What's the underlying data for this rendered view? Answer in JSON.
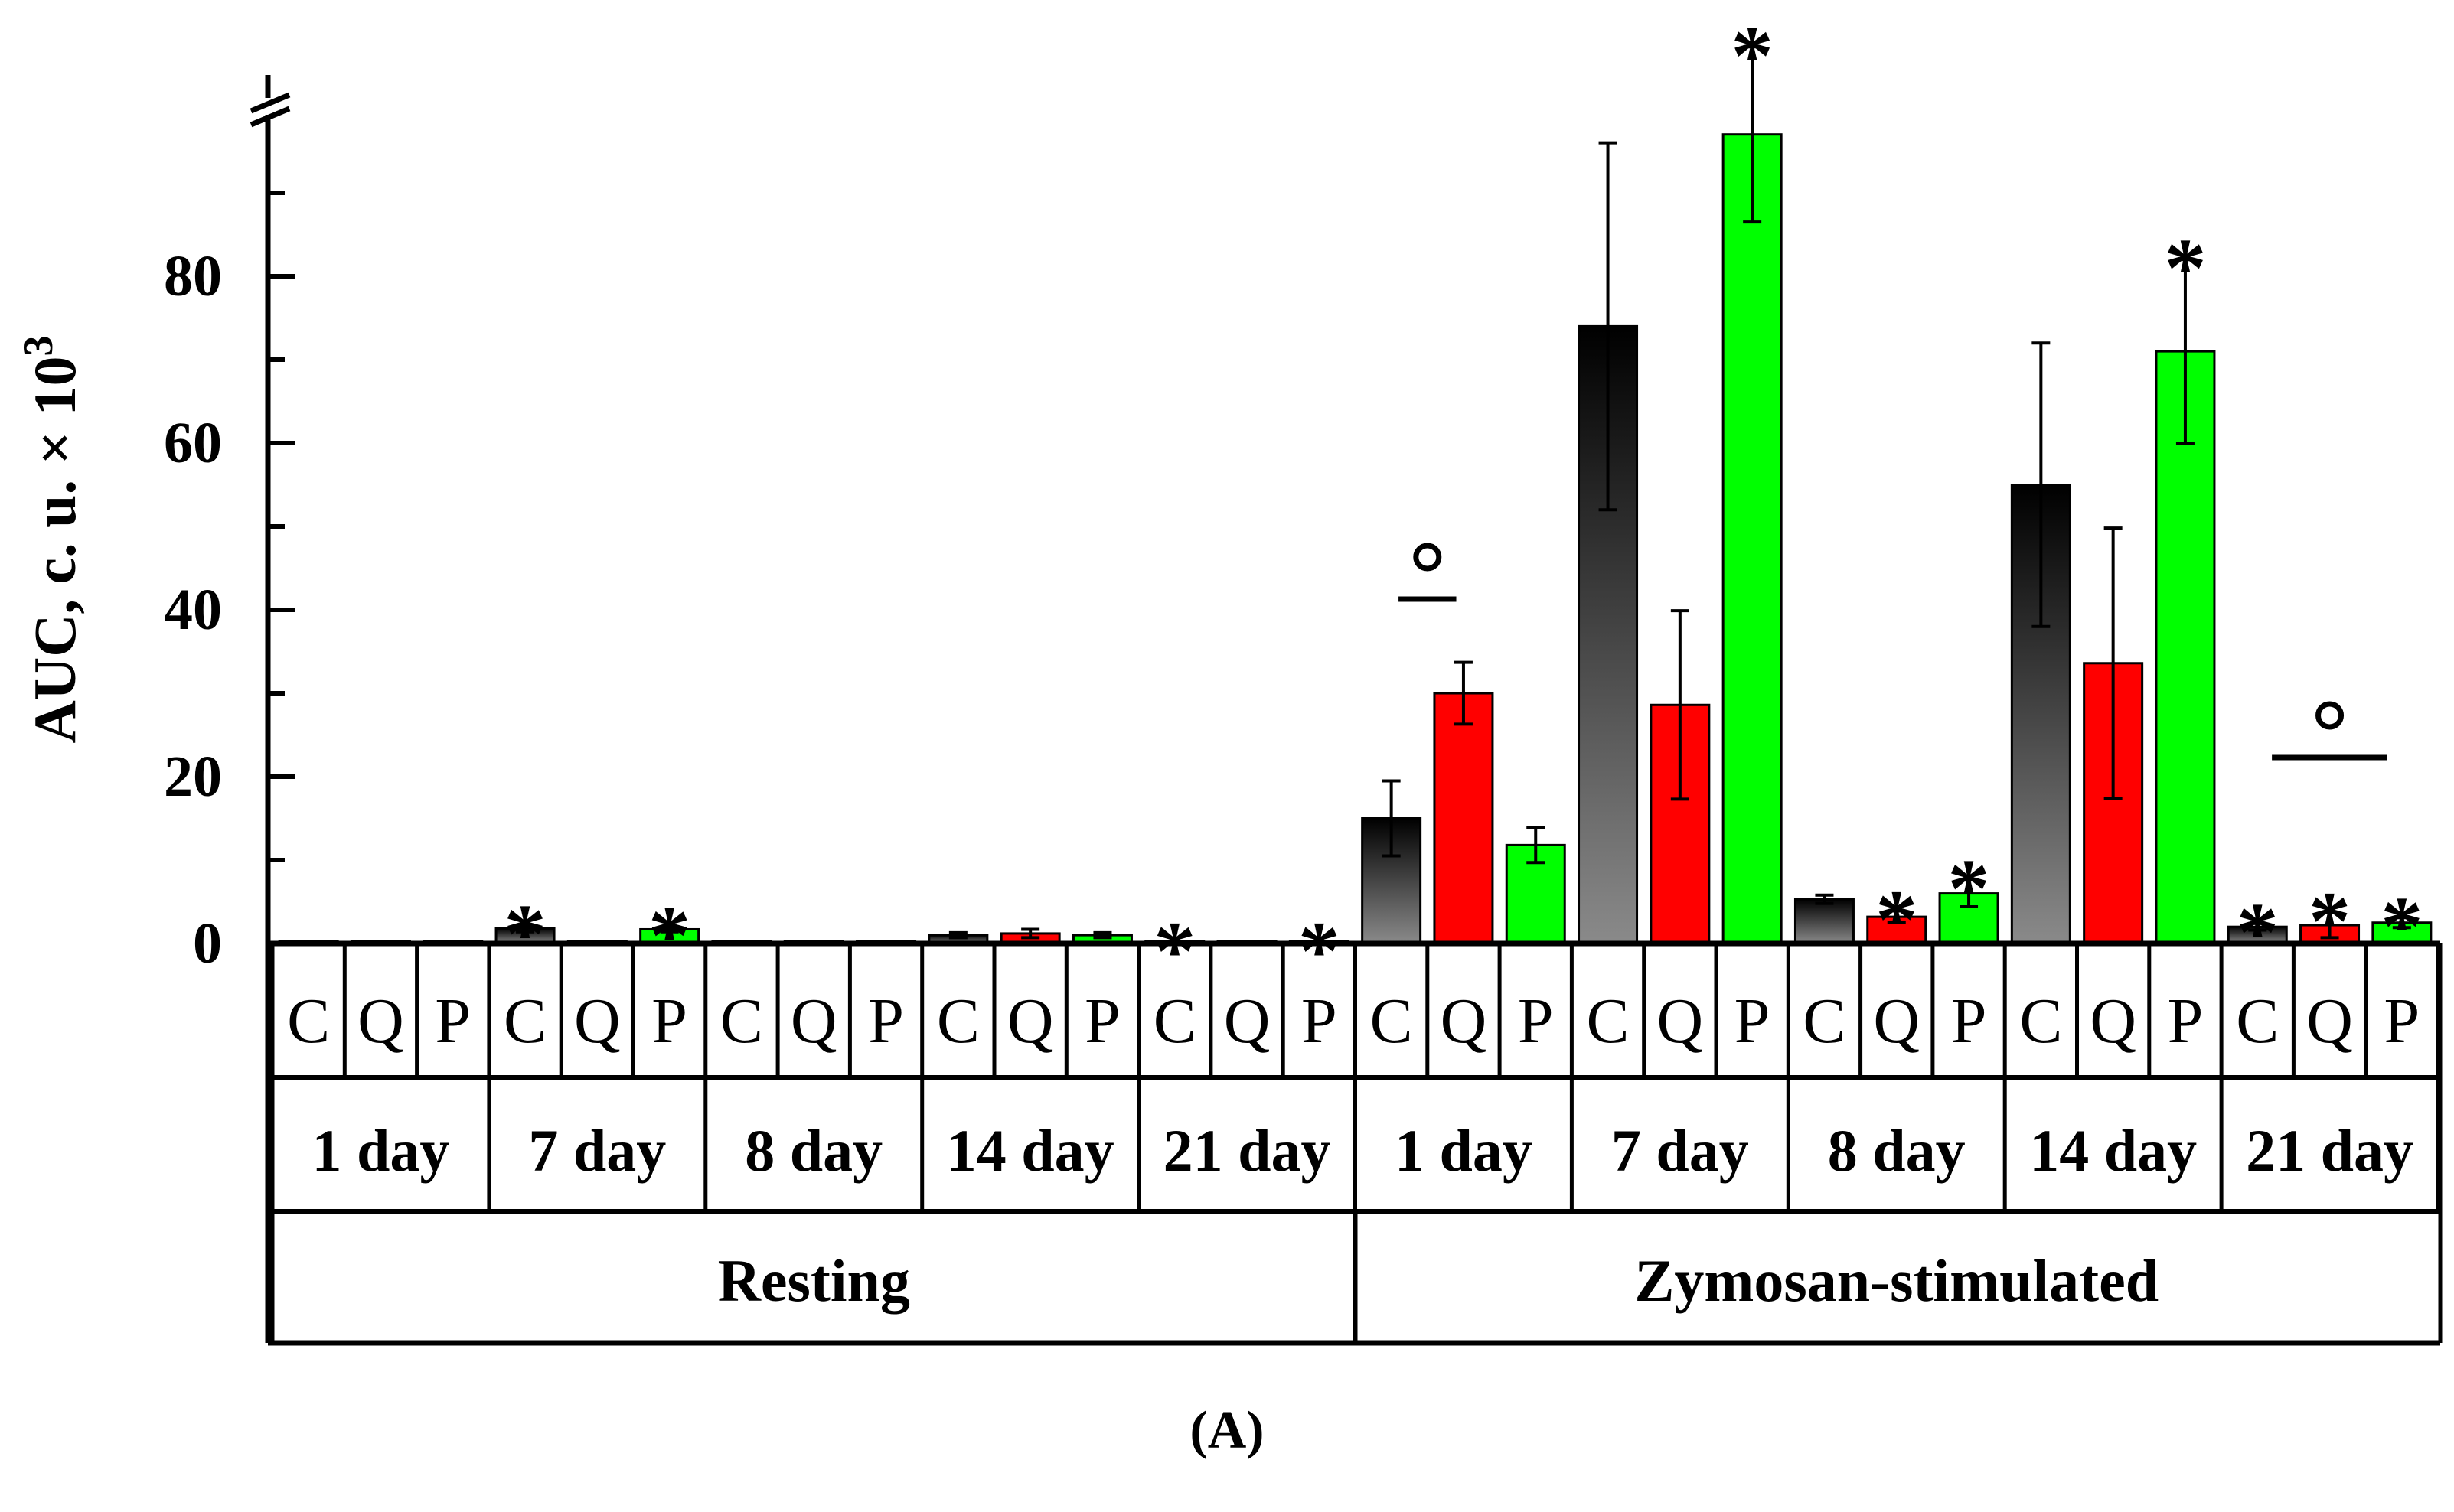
{
  "panel_label": "(A)",
  "chart_data": {
    "type": "bar",
    "ylabel": "AUC, c. u. × 10³",
    "ylabel_main": "AUC, c. u. × 10",
    "ylabel_exp": "3",
    "ylim": [
      0,
      100
    ],
    "yticks": [
      0,
      20,
      40,
      60,
      80
    ],
    "axis_break": true,
    "series_names": [
      "C",
      "Q",
      "P"
    ],
    "colors": {
      "C": "#555555",
      "Q": "#ff0000",
      "P": "#00ff00",
      "C_top": "#000000",
      "C_bottom": "#888888"
    },
    "groups": [
      {
        "name": "Resting",
        "days": [
          {
            "label": "1 day",
            "values": [
              0.3,
              0.3,
              0.3
            ],
            "errors": [
              0.1,
              0.1,
              0.1
            ],
            "stars": [
              false,
              false,
              false
            ]
          },
          {
            "label": "7 day",
            "values": [
              1.8,
              0.3,
              1.7
            ],
            "errors": [
              0.4,
              0.1,
              0.3
            ],
            "stars": [
              true,
              false,
              true
            ]
          },
          {
            "label": "8 day",
            "values": [
              0.1,
              0.2,
              0.1
            ],
            "errors": [
              0.05,
              0.05,
              0.05
            ],
            "stars": [
              false,
              false,
              false
            ]
          },
          {
            "label": "14 day",
            "values": [
              1.0,
              1.2,
              1.0
            ],
            "errors": [
              0.3,
              0.5,
              0.3
            ],
            "stars": [
              false,
              false,
              false
            ]
          },
          {
            "label": "21 day",
            "values": [
              0.1,
              0.2,
              0.1
            ],
            "errors": [
              0.05,
              0.05,
              0.05
            ],
            "stars": [
              true,
              false,
              true
            ]
          }
        ]
      },
      {
        "name": "Zymosan-stimulated",
        "days": [
          {
            "label": "1 day",
            "values": [
              15.0,
              30.0,
              11.8
            ],
            "errors": [
              4.5,
              3.7,
              2.1
            ],
            "stars": [
              false,
              false,
              false
            ],
            "circle_pair": [
              0,
              1
            ]
          },
          {
            "label": "7 day",
            "values": [
              74.0,
              28.6,
              97.0
            ],
            "errors": [
              22.0,
              11.3,
              10.5
            ],
            "stars": [
              false,
              false,
              true
            ]
          },
          {
            "label": "8 day",
            "values": [
              5.3,
              3.2,
              6.0
            ],
            "errors": [
              0.5,
              0.7,
              1.6
            ],
            "stars": [
              false,
              true,
              true
            ]
          },
          {
            "label": "14 day",
            "values": [
              55.0,
              33.6,
              71.0
            ],
            "errors": [
              17.0,
              16.2,
              11.0
            ],
            "stars": [
              false,
              false,
              true
            ]
          },
          {
            "label": "21 day",
            "values": [
              2.0,
              2.2,
              2.5
            ],
            "errors": [
              0.4,
              1.5,
              0.6
            ],
            "stars": [
              true,
              true,
              true
            ],
            "circle_pair": [
              0,
              2
            ]
          }
        ]
      }
    ],
    "significance_marks": {
      "star": "*",
      "circle": "°"
    }
  }
}
